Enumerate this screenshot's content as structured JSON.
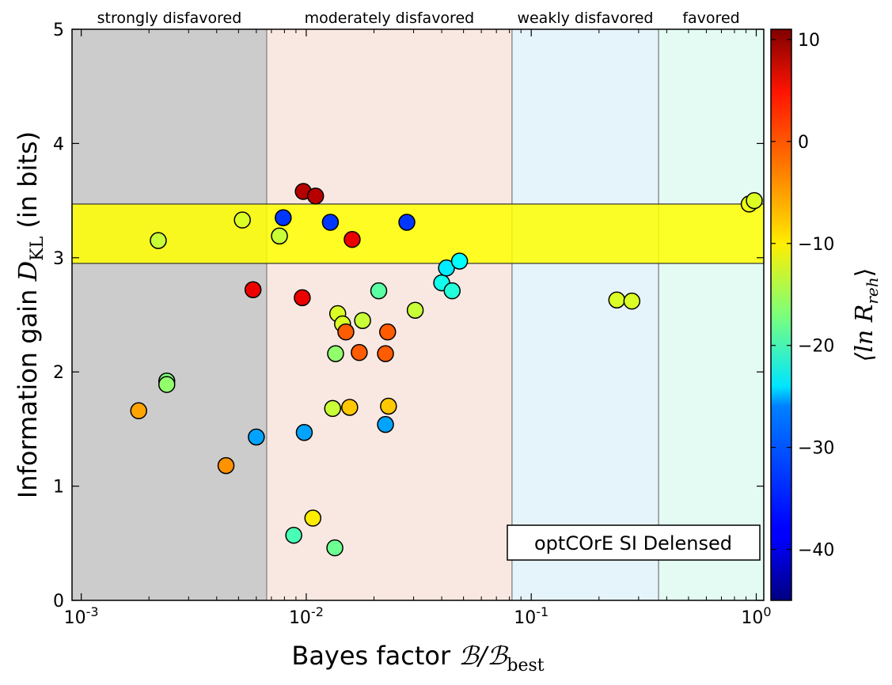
{
  "chart_data": {
    "type": "scatter",
    "title": "",
    "xlabel_prefix": "Bayes factor ",
    "xlabel_math": "ℬ/ℬ",
    "xlabel_sub": "best",
    "ylabel_prefix": "Information gain ",
    "ylabel_math": "D",
    "ylabel_sub": "KL",
    "ylabel_suffix": "  (in bits)",
    "xscale": "log",
    "xlim": [
      0.00091,
      1.08
    ],
    "ylim": [
      0,
      5
    ],
    "xticks": [
      {
        "value": 0.001,
        "base": "10",
        "exp": "-3"
      },
      {
        "value": 0.01,
        "base": "10",
        "exp": "-2"
      },
      {
        "value": 0.1,
        "base": "10",
        "exp": "-1"
      },
      {
        "value": 1,
        "base": "10",
        "exp": "0"
      }
    ],
    "yticks": [
      {
        "value": 0,
        "label": "0"
      },
      {
        "value": 1,
        "label": "1"
      },
      {
        "value": 2,
        "label": "2"
      },
      {
        "value": 3,
        "label": "3"
      },
      {
        "value": 4,
        "label": "4"
      },
      {
        "value": 5,
        "label": "5"
      }
    ],
    "regions": [
      {
        "label": "strongly disfavored",
        "x0": 0.00091,
        "x1": 0.00667,
        "color": "#cccccc"
      },
      {
        "label": "moderately disfavored",
        "x0": 0.00667,
        "x1": 0.0821,
        "color": "#f9e8e1"
      },
      {
        "label": "weakly disfavored",
        "x0": 0.0821,
        "x1": 0.368,
        "color": "#e5f3fa"
      },
      {
        "label": "favored",
        "x0": 0.368,
        "x1": 1.08,
        "color": "#e3fbf3"
      }
    ],
    "band": {
      "y0": 2.95,
      "y1": 3.47,
      "color": "#ffff00"
    },
    "annotation": "optCOrE SI Delensed",
    "colorbar": {
      "label_math": "⟨ln R",
      "label_sub": "reh",
      "label_close": "⟩",
      "vmin": -45,
      "vmax": 11,
      "ticks": [
        {
          "value": 10,
          "label": "10"
        },
        {
          "value": 0,
          "label": "0"
        },
        {
          "value": -10,
          "label": "−10"
        },
        {
          "value": -20,
          "label": "−20"
        },
        {
          "value": -30,
          "label": "−30"
        },
        {
          "value": -40,
          "label": "−40"
        }
      ]
    },
    "points": [
      {
        "x": 0.0022,
        "y": 3.15,
        "c": -13
      },
      {
        "x": 0.0052,
        "y": 3.33,
        "c": -12
      },
      {
        "x": 0.0076,
        "y": 3.19,
        "c": -13
      },
      {
        "x": 0.0079,
        "y": 3.35,
        "c": -35
      },
      {
        "x": 0.0097,
        "y": 3.58,
        "c": 8
      },
      {
        "x": 0.011,
        "y": 3.54,
        "c": 8
      },
      {
        "x": 0.0128,
        "y": 3.31,
        "c": -35
      },
      {
        "x": 0.016,
        "y": 3.16,
        "c": 5
      },
      {
        "x": 0.028,
        "y": 3.31,
        "c": -35
      },
      {
        "x": 0.0058,
        "y": 2.72,
        "c": 5
      },
      {
        "x": 0.0096,
        "y": 2.65,
        "c": 5
      },
      {
        "x": 0.0138,
        "y": 2.51,
        "c": -12
      },
      {
        "x": 0.0145,
        "y": 2.42,
        "c": -12
      },
      {
        "x": 0.015,
        "y": 2.35,
        "c": -1
      },
      {
        "x": 0.0178,
        "y": 2.45,
        "c": -13
      },
      {
        "x": 0.021,
        "y": 2.71,
        "c": -19
      },
      {
        "x": 0.023,
        "y": 2.35,
        "c": -1
      },
      {
        "x": 0.0225,
        "y": 2.16,
        "c": -1
      },
      {
        "x": 0.0172,
        "y": 2.17,
        "c": -1
      },
      {
        "x": 0.0135,
        "y": 2.16,
        "c": -16
      },
      {
        "x": 0.0305,
        "y": 2.54,
        "c": -13
      },
      {
        "x": 0.04,
        "y": 2.78,
        "c": -23
      },
      {
        "x": 0.042,
        "y": 2.91,
        "c": -25
      },
      {
        "x": 0.0445,
        "y": 2.71,
        "c": -22
      },
      {
        "x": 0.048,
        "y": 2.97,
        "c": -24
      },
      {
        "x": 0.24,
        "y": 2.63,
        "c": -12
      },
      {
        "x": 0.28,
        "y": 2.62,
        "c": -12
      },
      {
        "x": 0.93,
        "y": 3.47,
        "c": -11
      },
      {
        "x": 0.98,
        "y": 3.5,
        "c": -12
      },
      {
        "x": 0.0018,
        "y": 1.66,
        "c": -5
      },
      {
        "x": 0.0024,
        "y": 1.92,
        "c": -17
      },
      {
        "x": 0.0024,
        "y": 1.89,
        "c": -16
      },
      {
        "x": 0.0044,
        "y": 1.18,
        "c": -4
      },
      {
        "x": 0.006,
        "y": 1.43,
        "c": -29
      },
      {
        "x": 0.0098,
        "y": 1.47,
        "c": -29
      },
      {
        "x": 0.0131,
        "y": 1.68,
        "c": -13
      },
      {
        "x": 0.0156,
        "y": 1.69,
        "c": -7
      },
      {
        "x": 0.0225,
        "y": 1.54,
        "c": -29
      },
      {
        "x": 0.0232,
        "y": 1.7,
        "c": -7
      },
      {
        "x": 0.0088,
        "y": 0.57,
        "c": -20
      },
      {
        "x": 0.0107,
        "y": 0.72,
        "c": -9
      },
      {
        "x": 0.0134,
        "y": 0.46,
        "c": -18
      }
    ]
  }
}
